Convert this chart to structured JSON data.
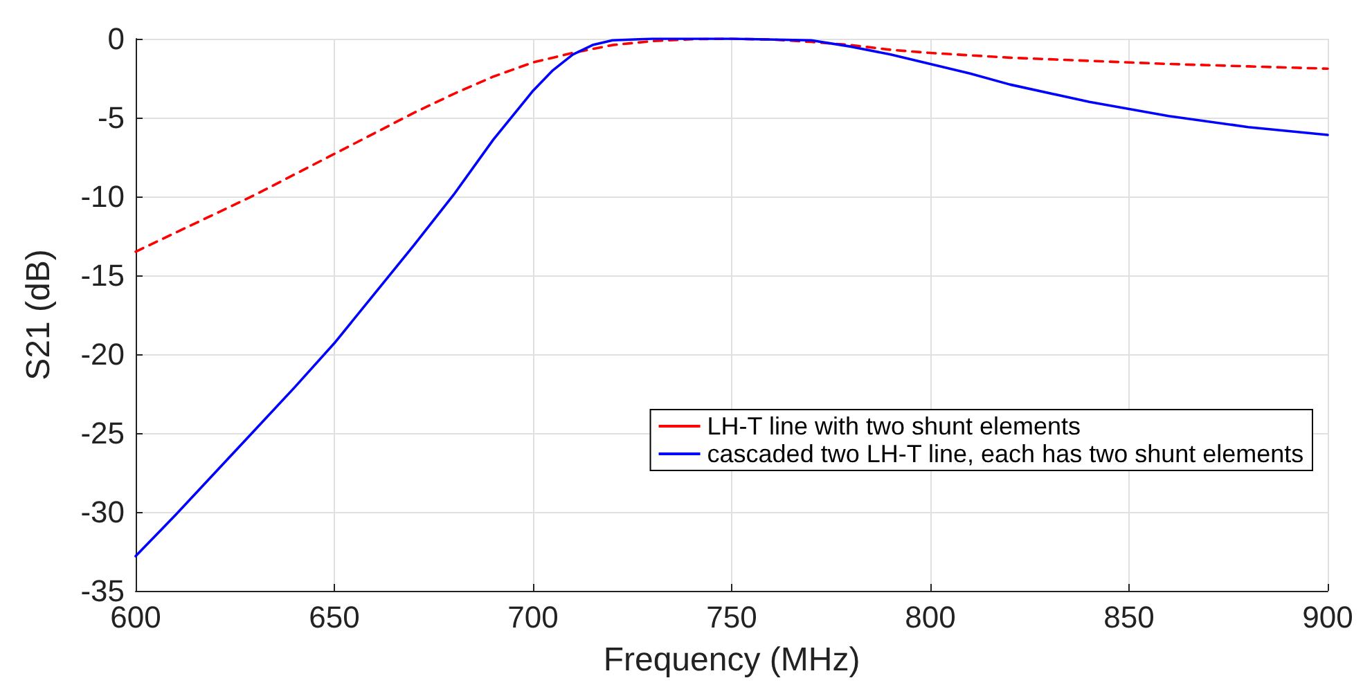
{
  "chart_data": {
    "type": "line",
    "xlabel": "Frequency (MHz)",
    "ylabel": "S21 (dB)",
    "xlim": [
      600,
      900
    ],
    "xticks": [
      600,
      650,
      700,
      750,
      800,
      850,
      900
    ],
    "ylim": [
      -35,
      0
    ],
    "yticks": [
      -35,
      -30,
      -25,
      -20,
      -15,
      -10,
      -5,
      0
    ],
    "grid": true,
    "legend": "bottom right",
    "marker": "none",
    "series": [
      {
        "name": "LH-T line with two shunt elements",
        "color": "#ff0000",
        "line_style": "dashed",
        "x": [
          600,
          610,
          620,
          630,
          640,
          650,
          660,
          670,
          680,
          690,
          700,
          710,
          720,
          730,
          740,
          750,
          760,
          770,
          780,
          790,
          800,
          820,
          840,
          860,
          880,
          900
        ],
        "values": [
          -13.5,
          -12.3,
          -11.1,
          -9.9,
          -8.6,
          -7.3,
          -6.0,
          -4.7,
          -3.5,
          -2.4,
          -1.5,
          -0.9,
          -0.4,
          -0.15,
          -0.03,
          0,
          -0.05,
          -0.2,
          -0.4,
          -0.7,
          -0.9,
          -1.2,
          -1.4,
          -1.6,
          -1.75,
          -1.9
        ]
      },
      {
        "name": "cascaded two LH-T line, each has two shunt elements",
        "color": "#0000ff",
        "line_style": "solid",
        "x": [
          600,
          610,
          620,
          630,
          640,
          650,
          660,
          670,
          680,
          690,
          700,
          705,
          710,
          715,
          720,
          730,
          750,
          770,
          780,
          790,
          800,
          810,
          820,
          840,
          860,
          880,
          900
        ],
        "values": [
          -32.8,
          -30.2,
          -27.5,
          -24.8,
          -22.1,
          -19.3,
          -16.2,
          -13.1,
          -9.9,
          -6.4,
          -3.3,
          -2.0,
          -1.0,
          -0.4,
          -0.1,
          0,
          0,
          -0.1,
          -0.5,
          -1.0,
          -1.6,
          -2.2,
          -2.9,
          -4.0,
          -4.9,
          -5.6,
          -6.1
        ]
      }
    ]
  }
}
